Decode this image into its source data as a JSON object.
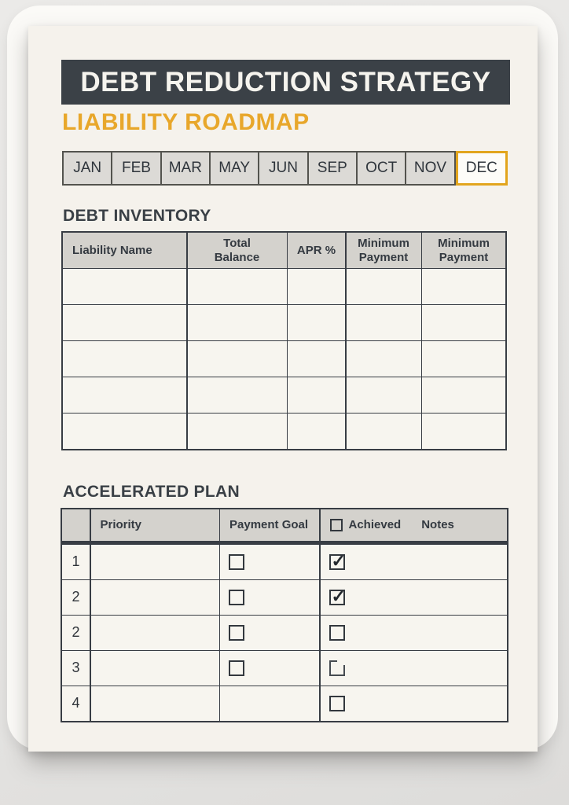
{
  "header": {
    "title": "DEBT REDUCTION STRATEGY",
    "subtitle": "LIABILITY ROADMAP"
  },
  "month_tabs": {
    "items": [
      "JAN",
      "FEB",
      "MAR",
      "MAY",
      "JUN",
      "SEP",
      "OCT",
      "NOV",
      "DEC"
    ],
    "active": "DEC"
  },
  "debt_inventory": {
    "title": "DEBT INVENTORY",
    "columns": [
      "Liability Name",
      "Total Balance",
      "APR %",
      "Minimum Payment",
      "Minimum Payment"
    ],
    "rows": [
      [
        "",
        "",
        "",
        "",
        ""
      ],
      [
        "",
        "",
        "",
        "",
        ""
      ],
      [
        "",
        "",
        "",
        "",
        ""
      ],
      [
        "",
        "",
        "",
        "",
        ""
      ],
      [
        "",
        "",
        "",
        "",
        ""
      ]
    ]
  },
  "accelerated_plan": {
    "title": "ACCELERATED PLAN",
    "columns": {
      "index": "",
      "priority": "Priority",
      "payment_goal": "Payment Goal",
      "achieved": "Achieved",
      "notes": "Notes"
    },
    "rows": [
      {
        "index": "1",
        "priority": "",
        "payment_goal_checkbox": "unchecked",
        "achieved_checkbox": "checked",
        "notes": ""
      },
      {
        "index": "2",
        "priority": "",
        "payment_goal_checkbox": "unchecked",
        "achieved_checkbox": "checked",
        "notes": ""
      },
      {
        "index": "2",
        "priority": "",
        "payment_goal_checkbox": "unchecked",
        "achieved_checkbox": "unchecked",
        "notes": ""
      },
      {
        "index": "3",
        "priority": "",
        "payment_goal_checkbox": "unchecked",
        "achieved_checkbox": "partial",
        "notes": ""
      },
      {
        "index": "4",
        "priority": "",
        "payment_goal_checkbox": "none",
        "achieved_checkbox": "unchecked",
        "notes": ""
      }
    ]
  },
  "icons": {
    "check_glyph": "✓",
    "checkbox_empty": "checkbox-empty-icon",
    "checkbox_checked": "checkbox-checked-icon"
  },
  "colors": {
    "accent_yellow": "#e8a72b",
    "active_tab_border": "#e2a51d",
    "header_dark": "#3b4147",
    "paper": "#f5f2ec",
    "table_header_gray": "#d4d2cd"
  }
}
